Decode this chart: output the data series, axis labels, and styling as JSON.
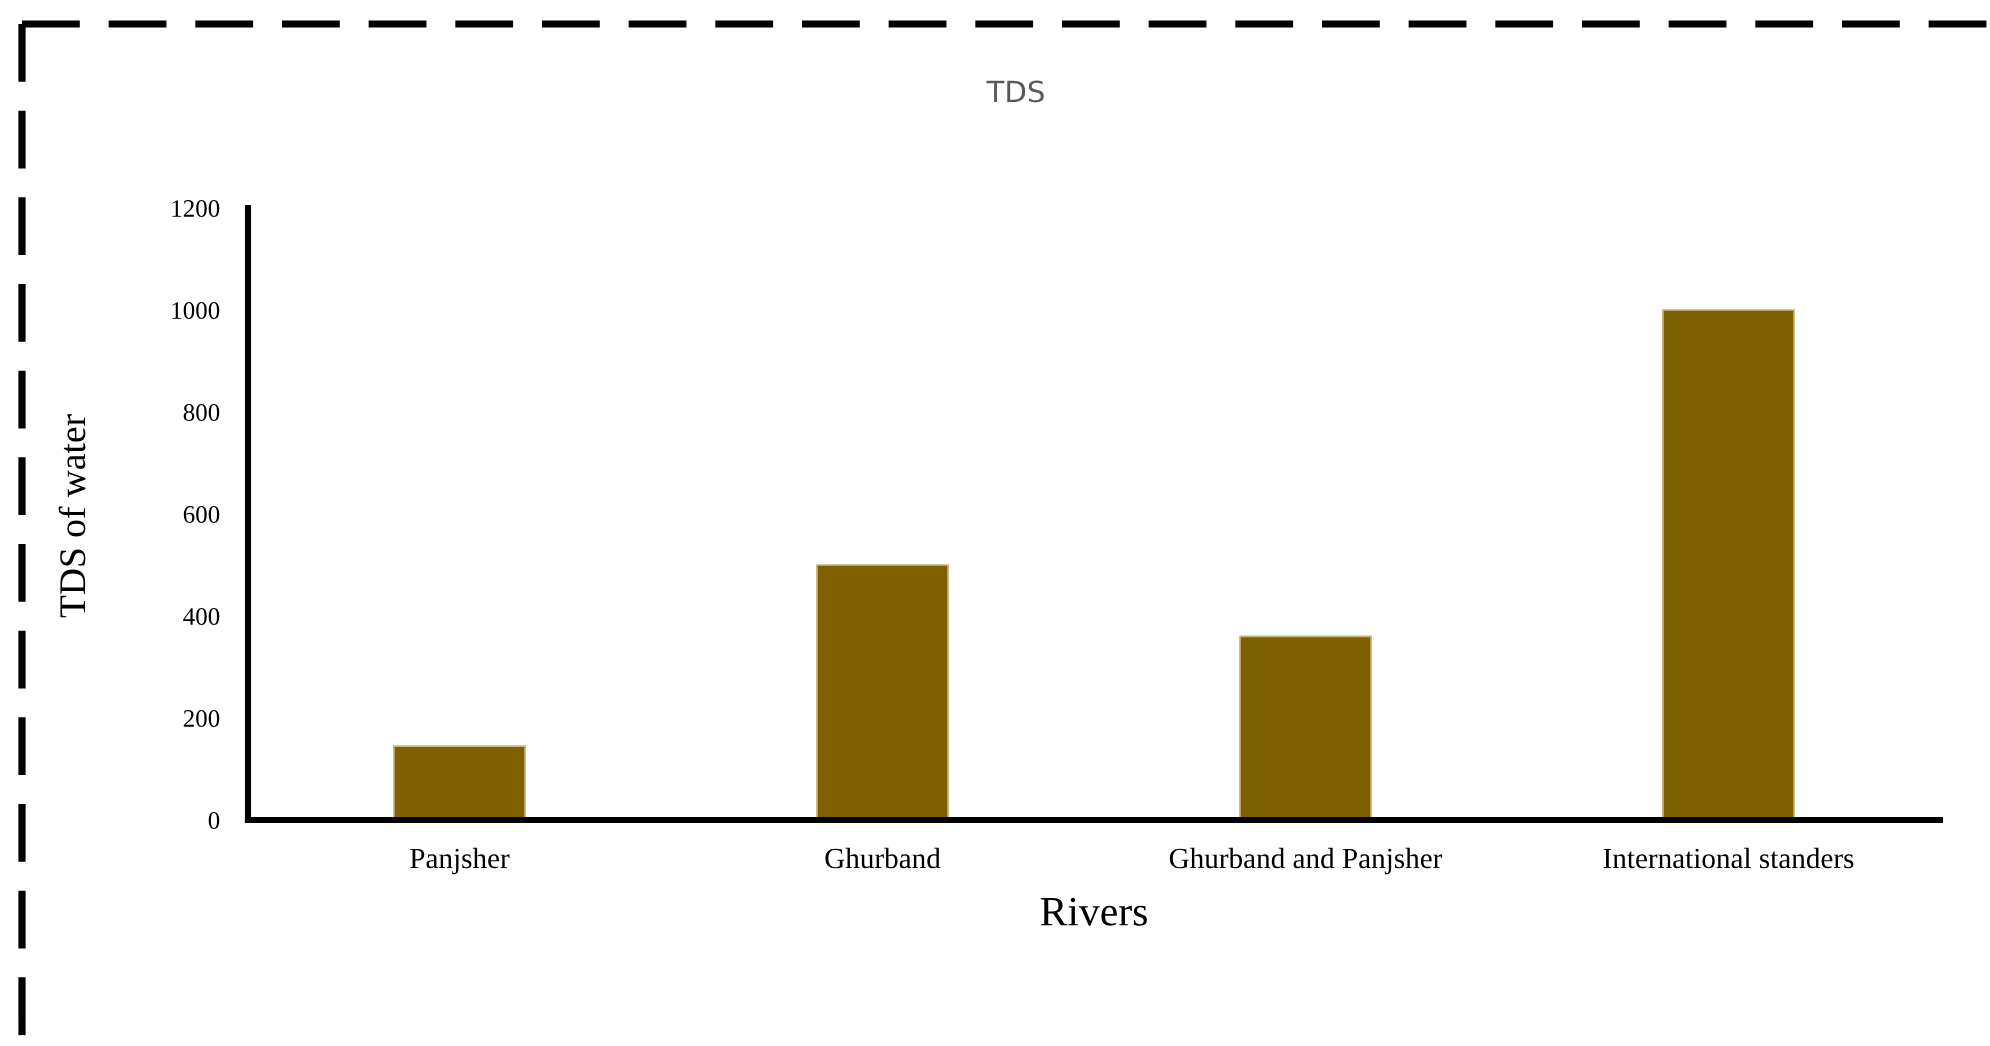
{
  "chart_data": {
    "type": "bar",
    "title": "TDS",
    "xlabel": "Rivers",
    "ylabel": "TDS of water",
    "categories": [
      "Panjsher",
      "Ghurband",
      "Ghurband and Panjsher",
      "International standers"
    ],
    "values": [
      145,
      500,
      360,
      1000
    ],
    "color": "#7f6000",
    "ylim": [
      0,
      1200
    ],
    "yticks": [
      0,
      200,
      400,
      600,
      800,
      1000,
      1200
    ],
    "grid": false
  }
}
